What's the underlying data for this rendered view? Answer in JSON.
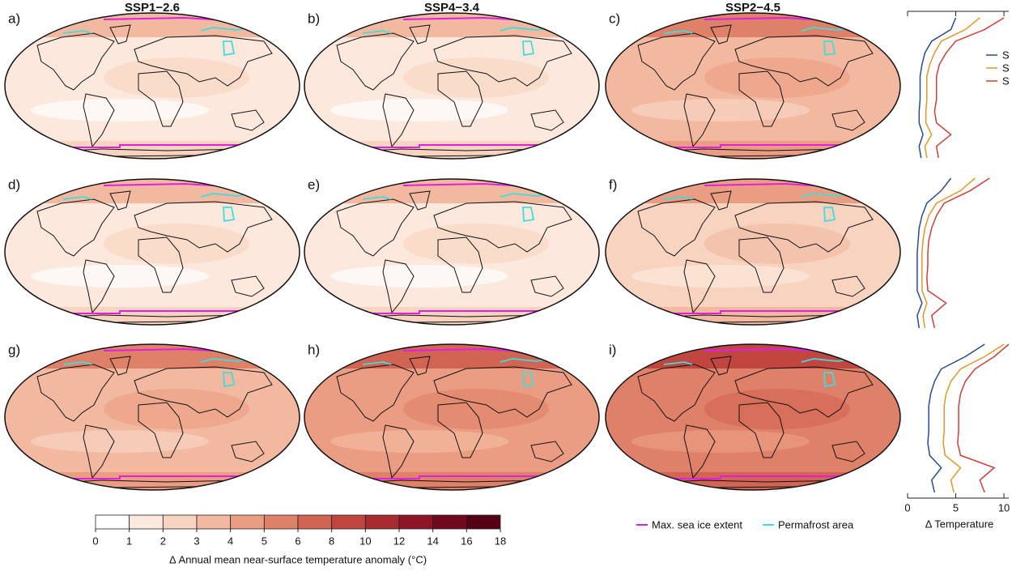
{
  "columns": [
    "SSP1−2.6",
    "SSP4−3.4",
    "SSP2−4.5"
  ],
  "panels": [
    "a)",
    "b)",
    "c)",
    "d)",
    "e)",
    "f)",
    "g)",
    "h)",
    "i)"
  ],
  "colorbar": {
    "label": "Δ Annual mean near-surface temperature anomaly (°C)",
    "ticks": [
      0,
      1,
      2,
      3,
      4,
      5,
      6,
      8,
      10,
      12,
      14,
      16,
      18
    ],
    "colors": [
      "#ffffff",
      "#fce8dc",
      "#f8d3c0",
      "#f2b9a0",
      "#ea9d82",
      "#df8068",
      "#d26453",
      "#c0463f",
      "#a82b2f",
      "#8e1525",
      "#72081e",
      "#560016"
    ]
  },
  "legend": [
    {
      "name": "Max. sea ice extent",
      "color": "#e020e0"
    },
    {
      "name": "Permafrost area",
      "color": "#40dcdc"
    }
  ],
  "chart_data": {
    "type": "line",
    "xlabel": "Δ Temperature",
    "xlim": [
      0,
      10.5
    ],
    "xticks": [
      0,
      5,
      10
    ],
    "series": [
      {
        "name": "S",
        "color": "#2b4a8a",
        "values": [
          [
            5,
            4.5,
            2.5,
            1.8,
            1.5,
            1.3,
            1.3,
            1.3,
            1.2,
            1.2,
            1.6,
            1.2,
            1.4
          ],
          [
            4.5,
            3.5,
            2,
            1.5,
            1.2,
            1.1,
            1,
            1,
            1,
            1,
            1.5,
            1,
            1.2
          ],
          [
            8,
            6,
            3.5,
            2.8,
            2.4,
            2.2,
            2.2,
            2.2,
            2.1,
            2.3,
            3.5,
            2.5,
            2.8
          ]
        ]
      },
      {
        "name": "S",
        "color": "#d99a2b",
        "values": [
          [
            7.5,
            6,
            3.5,
            2.8,
            2.3,
            2,
            2,
            2,
            1.9,
            1.9,
            2.5,
            1.8,
            2
          ],
          [
            7,
            5.5,
            3,
            2.2,
            1.8,
            1.6,
            1.5,
            1.5,
            1.5,
            1.5,
            2,
            1.6,
            1.8
          ],
          [
            10,
            8,
            5.5,
            4.5,
            4,
            3.8,
            3.8,
            3.8,
            3.7,
            3.9,
            5.5,
            4.5,
            4.8
          ]
        ]
      },
      {
        "name": "S",
        "color": "#c9403a",
        "values": [
          [
            10,
            8,
            5,
            4,
            3.3,
            3,
            3,
            3,
            2.8,
            3,
            4.5,
            3,
            3.2
          ],
          [
            8.5,
            6.5,
            3.8,
            3,
            2.5,
            2.2,
            2.1,
            2.1,
            2,
            2.1,
            4,
            2.5,
            2.8
          ],
          [
            10.5,
            9,
            7,
            6,
            5.5,
            5.3,
            5.3,
            5.3,
            5.2,
            5.5,
            9,
            7.5,
            8
          ]
        ]
      }
    ]
  }
}
